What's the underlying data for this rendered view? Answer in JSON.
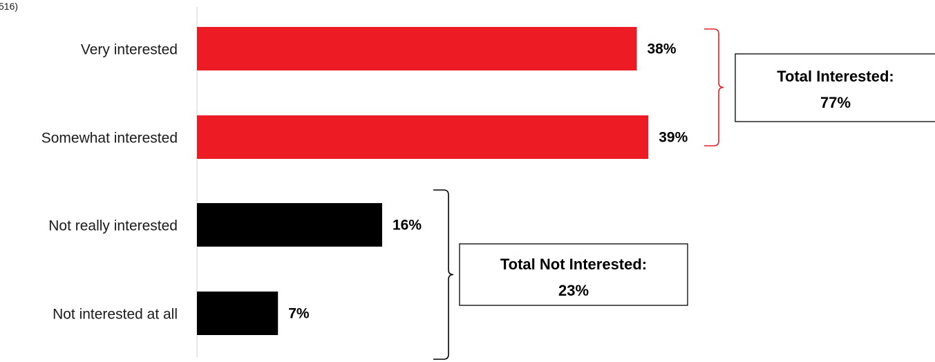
{
  "header": {
    "cut_text": "516)"
  },
  "chart_data": {
    "type": "bar",
    "orientation": "horizontal",
    "categories": [
      "Very interested",
      "Somewhat interested",
      "Not really interested",
      "Not interested at all"
    ],
    "values": [
      38,
      39,
      16,
      7
    ],
    "value_labels": [
      "38%",
      "39%",
      "16%",
      "7%"
    ],
    "xlim": [
      0,
      100
    ],
    "bar_colors": [
      "#ed1c24",
      "#ed1c24",
      "#000000",
      "#000000"
    ],
    "grid": false,
    "legend": "none",
    "annotations": [
      {
        "line1": "Total Interested:",
        "line2": "77%",
        "bracket_color": "#ed1c24",
        "covers": [
          "Very interested",
          "Somewhat interested"
        ]
      },
      {
        "line1": "Total Not Interested:",
        "line2": "23%",
        "bracket_color": "#000000",
        "covers": [
          "Not really interested",
          "Not interested at all"
        ]
      }
    ]
  }
}
